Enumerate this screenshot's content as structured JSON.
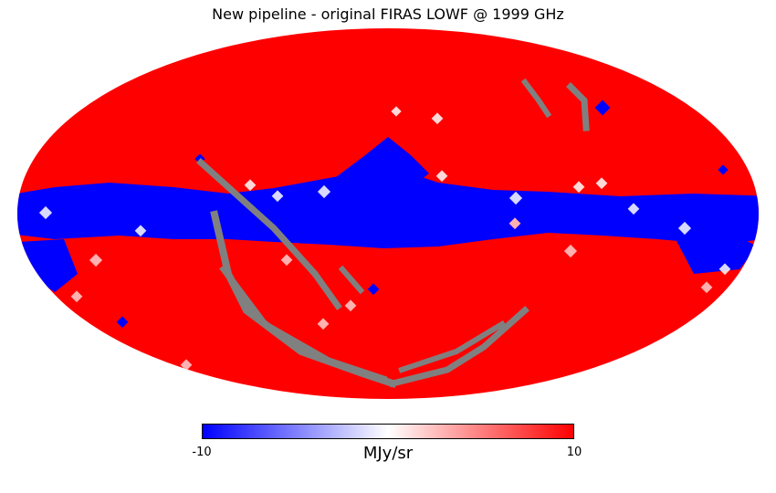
{
  "title": "New pipeline - original FIRAS LOWF @ 1999 GHz",
  "projection": "mollweide",
  "colormap": {
    "name": "bwr",
    "min_label": "-10",
    "max_label": "10",
    "vmin": -10,
    "vmax": 10,
    "unit": "MJy/sr",
    "low_color": "#0000ff",
    "mid_color": "#ffffff",
    "high_color": "#ff0000",
    "masked_color": "#808080"
  }
}
